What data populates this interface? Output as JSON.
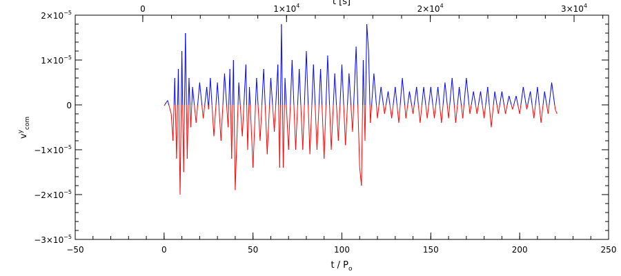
{
  "chart_data": {
    "type": "line",
    "title": "",
    "xlabel": "t / P",
    "xlabel_sub": "o",
    "ylabel": "v",
    "ylabel_sup": "y",
    "ylabel_sub": "com",
    "top_xlabel": "t [s]",
    "xlim": [
      -50,
      250
    ],
    "ylim": [
      -3e-05,
      2e-05
    ],
    "top_xlim_seconds": [
      -4700,
      32400
    ],
    "grid": false,
    "legend": "none",
    "x_major_ticks": [
      {
        "value": -50,
        "label": "−50"
      },
      {
        "value": 0,
        "label": "0"
      },
      {
        "value": 50,
        "label": "50"
      },
      {
        "value": 100,
        "label": "100"
      },
      {
        "value": 150,
        "label": "150"
      },
      {
        "value": 200,
        "label": "200"
      },
      {
        "value": 250,
        "label": "250"
      }
    ],
    "x_minor_step": 10,
    "y_major_ticks": [
      {
        "value": 2e-05,
        "mant": "2×10",
        "exp": "−5"
      },
      {
        "value": 1e-05,
        "mant": "1×10",
        "exp": "−5"
      },
      {
        "value": 0,
        "mant": "0",
        "exp": ""
      },
      {
        "value": -1e-05,
        "mant": "−1×10",
        "exp": "−5"
      },
      {
        "value": -2e-05,
        "mant": "−2×10",
        "exp": "−5"
      },
      {
        "value": -3e-05,
        "mant": "−3×10",
        "exp": "−5"
      }
    ],
    "y_minor_step": 2e-06,
    "top_major_ticks": [
      {
        "value": 0,
        "mant": "0",
        "exp": ""
      },
      {
        "value": 10000,
        "mant": "1×10",
        "exp": "4"
      },
      {
        "value": 20000,
        "mant": "2×10",
        "exp": "4"
      },
      {
        "value": 30000,
        "mant": "3×10",
        "exp": "4"
      }
    ],
    "top_minor_step": 2000,
    "series": [
      {
        "color_positive": "#0000ff",
        "color_negative": "#ff0000",
        "x": [
          0,
          2,
          4,
          5,
          6,
          7,
          8,
          9,
          10,
          11,
          12,
          13,
          14,
          15,
          16,
          18,
          20,
          22,
          24,
          25,
          26,
          28,
          30,
          32,
          34,
          36,
          37,
          38,
          39,
          40,
          42,
          44,
          46,
          47,
          48,
          50,
          52,
          54,
          56,
          58,
          60,
          62,
          64,
          65,
          66,
          67,
          68,
          70,
          72,
          74,
          76,
          78,
          80,
          82,
          84,
          86,
          88,
          90,
          92,
          94,
          96,
          98,
          100,
          102,
          104,
          106,
          108,
          110,
          111,
          112,
          113,
          114,
          115,
          116,
          118,
          120,
          122,
          124,
          126,
          128,
          130,
          132,
          134,
          136,
          138,
          140,
          142,
          144,
          146,
          148,
          150,
          152,
          154,
          156,
          158,
          160,
          162,
          164,
          166,
          168,
          170,
          172,
          174,
          176,
          178,
          180,
          182,
          184,
          186,
          188,
          190,
          192,
          194,
          196,
          198,
          200,
          202,
          204,
          206,
          208,
          210,
          212,
          214,
          216,
          218,
          220,
          221
        ],
        "y": [
          -2e-07,
          1e-06,
          -2e-06,
          -8e-06,
          6e-06,
          -1.2e-05,
          8e-06,
          -2e-05,
          1.2e-05,
          -1.5e-05,
          1.6e-05,
          -1.2e-05,
          6e-06,
          -5e-06,
          4e-06,
          -4e-06,
          5e-06,
          -3e-06,
          4e-06,
          -1e-06,
          6e-06,
          -7e-06,
          5e-06,
          -8e-06,
          7e-06,
          -5e-06,
          8e-06,
          -1.2e-05,
          1e-05,
          -1.9e-05,
          5e-06,
          -7e-06,
          9e-06,
          -1e-05,
          4e-06,
          -1.4e-05,
          6e-06,
          -8e-06,
          8e-06,
          -1.1e-05,
          6e-06,
          -6e-06,
          9e-06,
          -1.4e-05,
          1.8e-05,
          -1.4e-05,
          6e-06,
          -1e-05,
          1e-05,
          -1e-05,
          8e-06,
          -1e-05,
          1.2e-05,
          -1.1e-05,
          9e-06,
          -1e-05,
          8e-06,
          -1.2e-05,
          1.1e-05,
          -1e-05,
          7e-06,
          -8e-06,
          9e-06,
          -9e-06,
          7e-06,
          -6e-06,
          1.3e-05,
          -1.4e-05,
          -1.8e-05,
          1e-05,
          -8e-06,
          1.8e-05,
          1.2e-05,
          -4e-06,
          7e-06,
          -3e-06,
          4e-06,
          -2e-06,
          3e-06,
          -3e-06,
          4e-06,
          -4e-06,
          6e-06,
          -3e-06,
          3e-06,
          -2e-06,
          4e-06,
          -4e-06,
          4e-06,
          -3e-06,
          4e-06,
          -3e-06,
          4e-06,
          -4e-06,
          5e-06,
          -3e-06,
          6e-06,
          -4e-06,
          4e-06,
          -3e-06,
          6e-06,
          -2e-06,
          3e-06,
          -2e-06,
          3e-06,
          -3e-06,
          4e-06,
          -5e-06,
          3e-06,
          -2e-06,
          3e-06,
          -2e-06,
          2e-06,
          -1e-06,
          2e-06,
          -2e-06,
          4e-06,
          -1e-06,
          3e-06,
          -3e-06,
          4e-06,
          -4e-06,
          3e-06,
          -2e-06,
          5e-06,
          -1e-06,
          -2e-06
        ]
      }
    ]
  }
}
